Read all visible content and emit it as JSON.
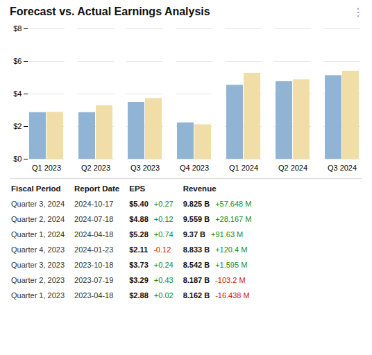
{
  "chart_data": [
    {
      "type": "bar",
      "title": "Forecast vs. Actual Earnings Analysis",
      "annotations": [
        "⋮"
      ],
      "categories": [
        "Q1 2023",
        "Q2 2023",
        "Q3 2023",
        "Q4 2023",
        "Q1 2024",
        "Q2 2024",
        "Q3 2024"
      ],
      "series": [
        {
          "color": "#92b4d4",
          "values": [
            2.86,
            2.86,
            3.49,
            2.23,
            4.54,
            4.76,
            5.13
          ]
        },
        {
          "color": "#f0dda8",
          "values": [
            2.88,
            3.29,
            3.73,
            2.11,
            5.28,
            4.88,
            5.4
          ]
        }
      ],
      "ylim": [
        0,
        8
      ],
      "yticks": [
        {
          "value": 0,
          "label": "$0"
        },
        {
          "value": 2,
          "label": "$2"
        },
        {
          "value": 4,
          "label": "$4"
        },
        {
          "value": 6,
          "label": "$6"
        },
        {
          "value": 8,
          "label": "$8"
        }
      ],
      "grid": true
    },
    {
      "type": "table",
      "columns": [
        "Fiscal Period",
        "Report Date",
        "EPS",
        "Revenue"
      ],
      "rows": [
        [
          "Quarter 3, 2024",
          "2024-10-17",
          {
            "label": "$5.40",
            "change": "+0.27",
            "color": "#1a8a1a"
          },
          {
            "label": "9.825 B",
            "change": "+57.648 M",
            "color": "#1a8a1a"
          }
        ],
        [
          "Quarter 2, 2024",
          "2024-07-18",
          {
            "label": "$4.88",
            "change": "+0.12",
            "color": "#1a8a1a"
          },
          {
            "label": "9.559 B",
            "change": "+28.167 M",
            "color": "#1a8a1a"
          }
        ],
        [
          "Quarter 1, 2024",
          "2024-04-18",
          {
            "label": "$5.28",
            "change": "+0.74",
            "color": "#1a8a1a"
          },
          {
            "label": "9.37 B",
            "change": "+91.63 M",
            "color": "#1a8a1a"
          }
        ],
        [
          "Quarter 4, 2023",
          "2024-01-23",
          {
            "label": "$2.11",
            "change": "-0.12",
            "color": "#cc2200"
          },
          {
            "label": "8.833 B",
            "change": "+120.4 M",
            "color": "#1a8a1a"
          }
        ],
        [
          "Quarter 3, 2023",
          "2023-10-18",
          {
            "label": "$3.73",
            "change": "+0.24",
            "color": "#1a8a1a"
          },
          {
            "label": "8.542 B",
            "change": "+1.595 M",
            "color": "#1a8a1a"
          }
        ],
        [
          "Quarter 2, 2023",
          "2023-07-19",
          {
            "label": "$3.29",
            "change": "+0.43",
            "color": "#1a8a1a"
          },
          {
            "label": "8.187 B",
            "change": "-103.2 M",
            "color": "#cc2200"
          }
        ],
        [
          "Quarter 1, 2023",
          "2023-04-18",
          {
            "label": "$2.88",
            "change": "+0.02",
            "color": "#1a8a1a"
          },
          {
            "label": "8.162 B",
            "change": "-16.438 M",
            "color": "#cc2200"
          }
        ]
      ]
    }
  ]
}
